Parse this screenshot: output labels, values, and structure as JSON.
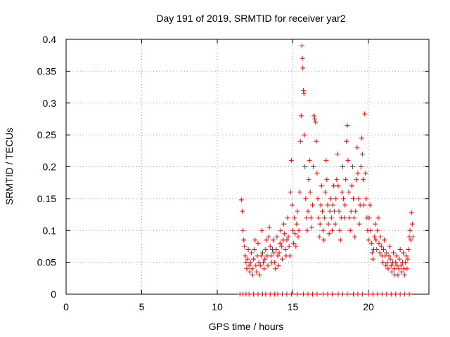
{
  "chart_data": {
    "type": "scatter",
    "title": "Day 191 of 2019, SRMTID for receiver yar2",
    "xlabel": "GPS time / hours",
    "ylabel": "SRMTID / TECUs",
    "xlim": [
      0,
      24
    ],
    "ylim": [
      0,
      0.4
    ],
    "xticks": [
      "0",
      "5",
      "10",
      "15",
      "20"
    ],
    "xtick_values": [
      0,
      5,
      10,
      15,
      20
    ],
    "yticks": [
      "0",
      "0.05",
      "0.1",
      "0.15",
      "0.2",
      "0.25",
      "0.3",
      "0.35",
      "0.4"
    ],
    "ytick_values": [
      0,
      0.05,
      0.1,
      0.15,
      0.2,
      0.25,
      0.3,
      0.35,
      0.4
    ],
    "grid": true,
    "marker": "+",
    "color": "#ff0000",
    "series": [
      {
        "name": "SRMTID",
        "points": [
          [
            11.6,
            0.148
          ],
          [
            11.65,
            0.13
          ],
          [
            11.7,
            0.1
          ],
          [
            11.75,
            0.085
          ],
          [
            11.8,
            0.075
          ],
          [
            11.85,
            0.06
          ],
          [
            11.9,
            0.05
          ],
          [
            11.95,
            0.04
          ],
          [
            12.0,
            0.055
          ],
          [
            12.05,
            0.07
          ],
          [
            12.1,
            0.045
          ],
          [
            12.15,
            0.035
          ],
          [
            12.2,
            0.05
          ],
          [
            12.25,
            0.065
          ],
          [
            12.3,
            0.04
          ],
          [
            12.35,
            0.03
          ],
          [
            12.4,
            0.055
          ],
          [
            12.45,
            0.07
          ],
          [
            12.5,
            0.085
          ],
          [
            12.55,
            0.045
          ],
          [
            12.6,
            0.035
          ],
          [
            12.65,
            0.06
          ],
          [
            12.7,
            0.08
          ],
          [
            12.75,
            0.05
          ],
          [
            12.8,
            0.03
          ],
          [
            12.85,
            0.045
          ],
          [
            12.9,
            0.06
          ],
          [
            12.95,
            0.1
          ],
          [
            13.0,
            0.065
          ],
          [
            13.05,
            0.05
          ],
          [
            13.1,
            0.04
          ],
          [
            13.15,
            0.055
          ],
          [
            13.2,
            0.07
          ],
          [
            13.25,
            0.085
          ],
          [
            13.3,
            0.06
          ],
          [
            13.35,
            0.045
          ],
          [
            13.4,
            0.09
          ],
          [
            13.45,
            0.105
          ],
          [
            13.5,
            0.075
          ],
          [
            13.55,
            0.06
          ],
          [
            13.6,
            0.05
          ],
          [
            13.65,
            0.07
          ],
          [
            13.7,
            0.085
          ],
          [
            13.75,
            0.065
          ],
          [
            13.8,
            0.05
          ],
          [
            13.85,
            0.04
          ],
          [
            13.9,
            0.07
          ],
          [
            13.95,
            0.09
          ],
          [
            14.0,
            0.06
          ],
          [
            14.05,
            0.045
          ],
          [
            14.1,
            0.065
          ],
          [
            14.15,
            0.08
          ],
          [
            14.2,
            0.1
          ],
          [
            14.25,
            0.075
          ],
          [
            14.3,
            0.055
          ],
          [
            14.35,
            0.085
          ],
          [
            14.4,
            0.11
          ],
          [
            14.45,
            0.095
          ],
          [
            14.5,
            0.07
          ],
          [
            14.55,
            0.06
          ],
          [
            14.6,
            0.085
          ],
          [
            14.65,
            0.12
          ],
          [
            14.7,
            0.09
          ],
          [
            14.75,
            0.075
          ],
          [
            14.8,
            0.06
          ],
          [
            14.85,
            0.16
          ],
          [
            14.9,
            0.21
          ],
          [
            14.95,
            0.14
          ],
          [
            15.0,
            0.1
          ],
          [
            15.05,
            0.08
          ],
          [
            15.1,
            0.12
          ],
          [
            15.15,
            0.095
          ],
          [
            15.2,
            0.075
          ],
          [
            15.25,
            0.11
          ],
          [
            15.3,
            0.13
          ],
          [
            15.35,
            0.09
          ],
          [
            15.4,
            0.1
          ],
          [
            15.45,
            0.16
          ],
          [
            15.5,
            0.24
          ],
          [
            15.55,
            0.28
          ],
          [
            15.6,
            0.39
          ],
          [
            15.63,
            0.37
          ],
          [
            15.66,
            0.355
          ],
          [
            15.7,
            0.32
          ],
          [
            15.73,
            0.315
          ],
          [
            15.76,
            0.25
          ],
          [
            15.8,
            0.2
          ],
          [
            15.85,
            0.15
          ],
          [
            15.9,
            0.12
          ],
          [
            15.95,
            0.1
          ],
          [
            16.0,
            0.13
          ],
          [
            16.05,
            0.18
          ],
          [
            16.1,
            0.21
          ],
          [
            16.15,
            0.16
          ],
          [
            16.2,
            0.12
          ],
          [
            16.25,
            0.105
          ],
          [
            16.3,
            0.14
          ],
          [
            16.35,
            0.2
          ],
          [
            16.4,
            0.28
          ],
          [
            16.45,
            0.275
          ],
          [
            16.5,
            0.27
          ],
          [
            16.55,
            0.24
          ],
          [
            16.6,
            0.19
          ],
          [
            16.65,
            0.15
          ],
          [
            16.7,
            0.12
          ],
          [
            16.75,
            0.09
          ],
          [
            16.8,
            0.11
          ],
          [
            16.85,
            0.14
          ],
          [
            16.9,
            0.17
          ],
          [
            16.95,
            0.13
          ],
          [
            17.0,
            0.1
          ],
          [
            17.05,
            0.085
          ],
          [
            17.1,
            0.12
          ],
          [
            17.15,
            0.16
          ],
          [
            17.2,
            0.21
          ],
          [
            17.25,
            0.18
          ],
          [
            17.3,
            0.14
          ],
          [
            17.35,
            0.11
          ],
          [
            17.4,
            0.095
          ],
          [
            17.45,
            0.13
          ],
          [
            17.5,
            0.15
          ],
          [
            17.55,
            0.12
          ],
          [
            17.6,
            0.1
          ],
          [
            17.65,
            0.14
          ],
          [
            17.7,
            0.17
          ],
          [
            17.75,
            0.13
          ],
          [
            17.8,
            0.11
          ],
          [
            17.85,
            0.15
          ],
          [
            17.9,
            0.18
          ],
          [
            17.95,
            0.22
          ],
          [
            18.0,
            0.17
          ],
          [
            18.05,
            0.13
          ],
          [
            18.1,
            0.1
          ],
          [
            18.15,
            0.085
          ],
          [
            18.2,
            0.12
          ],
          [
            18.25,
            0.16
          ],
          [
            18.3,
            0.2
          ],
          [
            18.35,
            0.15
          ],
          [
            18.4,
            0.12
          ],
          [
            18.45,
            0.14
          ],
          [
            18.5,
            0.18
          ],
          [
            18.55,
            0.24
          ],
          [
            18.6,
            0.265
          ],
          [
            18.65,
            0.21
          ],
          [
            18.7,
            0.16
          ],
          [
            18.75,
            0.12
          ],
          [
            18.8,
            0.1
          ],
          [
            18.85,
            0.13
          ],
          [
            18.9,
            0.17
          ],
          [
            18.95,
            0.2
          ],
          [
            19.0,
            0.15
          ],
          [
            19.05,
            0.12
          ],
          [
            19.1,
            0.09
          ],
          [
            19.15,
            0.13
          ],
          [
            19.2,
            0.18
          ],
          [
            19.25,
            0.23
          ],
          [
            19.3,
            0.19
          ],
          [
            19.35,
            0.15
          ],
          [
            19.4,
            0.11
          ],
          [
            19.45,
            0.14
          ],
          [
            19.5,
            0.2
          ],
          [
            19.55,
            0.245
          ],
          [
            19.6,
            0.22
          ],
          [
            19.65,
            0.18
          ],
          [
            19.7,
            0.14
          ],
          [
            19.75,
            0.283
          ],
          [
            19.8,
            0.19
          ],
          [
            19.85,
            0.15
          ],
          [
            19.9,
            0.12
          ],
          [
            19.95,
            0.1
          ],
          [
            20.0,
            0.085
          ],
          [
            20.05,
            0.12
          ],
          [
            20.1,
            0.14
          ],
          [
            20.15,
            0.1
          ],
          [
            20.2,
            0.08
          ],
          [
            20.25,
            0.065
          ],
          [
            20.3,
            0.055
          ],
          [
            20.35,
            0.07
          ],
          [
            20.4,
            0.09
          ],
          [
            20.45,
            0.11
          ],
          [
            20.5,
            0.085
          ],
          [
            20.55,
            0.07
          ],
          [
            20.6,
            0.1
          ],
          [
            20.65,
            0.12
          ],
          [
            20.7,
            0.08
          ],
          [
            20.75,
            0.065
          ],
          [
            20.8,
            0.09
          ],
          [
            20.85,
            0.075
          ],
          [
            20.9,
            0.06
          ],
          [
            20.95,
            0.05
          ],
          [
            21.0,
            0.07
          ],
          [
            21.05,
            0.085
          ],
          [
            21.1,
            0.06
          ],
          [
            21.15,
            0.045
          ],
          [
            21.2,
            0.065
          ],
          [
            21.25,
            0.05
          ],
          [
            21.3,
            0.04
          ],
          [
            21.35,
            0.06
          ],
          [
            21.4,
            0.075
          ],
          [
            21.45,
            0.055
          ],
          [
            21.5,
            0.045
          ],
          [
            21.55,
            0.035
          ],
          [
            21.6,
            0.05
          ],
          [
            21.65,
            0.065
          ],
          [
            21.7,
            0.04
          ],
          [
            21.75,
            0.03
          ],
          [
            21.8,
            0.05
          ],
          [
            21.85,
            0.06
          ],
          [
            21.9,
            0.045
          ],
          [
            21.95,
            0.03
          ],
          [
            22.0,
            0.04
          ],
          [
            22.05,
            0.055
          ],
          [
            22.1,
            0.07
          ],
          [
            22.15,
            0.045
          ],
          [
            22.2,
            0.035
          ],
          [
            22.25,
            0.05
          ],
          [
            22.3,
            0.065
          ],
          [
            22.35,
            0.04
          ],
          [
            22.4,
            0.03
          ],
          [
            22.45,
            0.05
          ],
          [
            22.5,
            0.06
          ],
          [
            22.55,
            0.04
          ],
          [
            22.6,
            0.055
          ],
          [
            22.65,
            0.07
          ],
          [
            22.7,
            0.09
          ],
          [
            22.75,
            0.1
          ],
          [
            22.8,
            0.085
          ],
          [
            22.85,
            0.128
          ],
          [
            22.9,
            0.11
          ],
          [
            22.95,
            0.09
          ],
          [
            11.5,
            0
          ],
          [
            11.7,
            0
          ],
          [
            11.9,
            0
          ],
          [
            12.1,
            0
          ],
          [
            12.4,
            0
          ],
          [
            12.7,
            0
          ],
          [
            13.0,
            0
          ],
          [
            13.2,
            0
          ],
          [
            13.5,
            0
          ],
          [
            13.8,
            0
          ],
          [
            14.0,
            0
          ],
          [
            14.3,
            0
          ],
          [
            14.6,
            0
          ],
          [
            14.9,
            0
          ],
          [
            15.3,
            0
          ],
          [
            15.7,
            0
          ],
          [
            16.0,
            0
          ],
          [
            16.3,
            0
          ],
          [
            16.6,
            0
          ],
          [
            17.0,
            0
          ],
          [
            17.3,
            0
          ],
          [
            17.6,
            0
          ],
          [
            18.0,
            0
          ],
          [
            18.3,
            0
          ],
          [
            18.6,
            0
          ],
          [
            19.0,
            0
          ],
          [
            19.3,
            0
          ],
          [
            19.6,
            0
          ],
          [
            20.0,
            0
          ],
          [
            20.3,
            0
          ],
          [
            20.6,
            0
          ],
          [
            20.9,
            0
          ],
          [
            21.2,
            0
          ],
          [
            21.5,
            0
          ],
          [
            21.8,
            0
          ],
          [
            22.1,
            0
          ],
          [
            22.4,
            0
          ],
          [
            22.7,
            0
          ]
        ]
      }
    ]
  }
}
